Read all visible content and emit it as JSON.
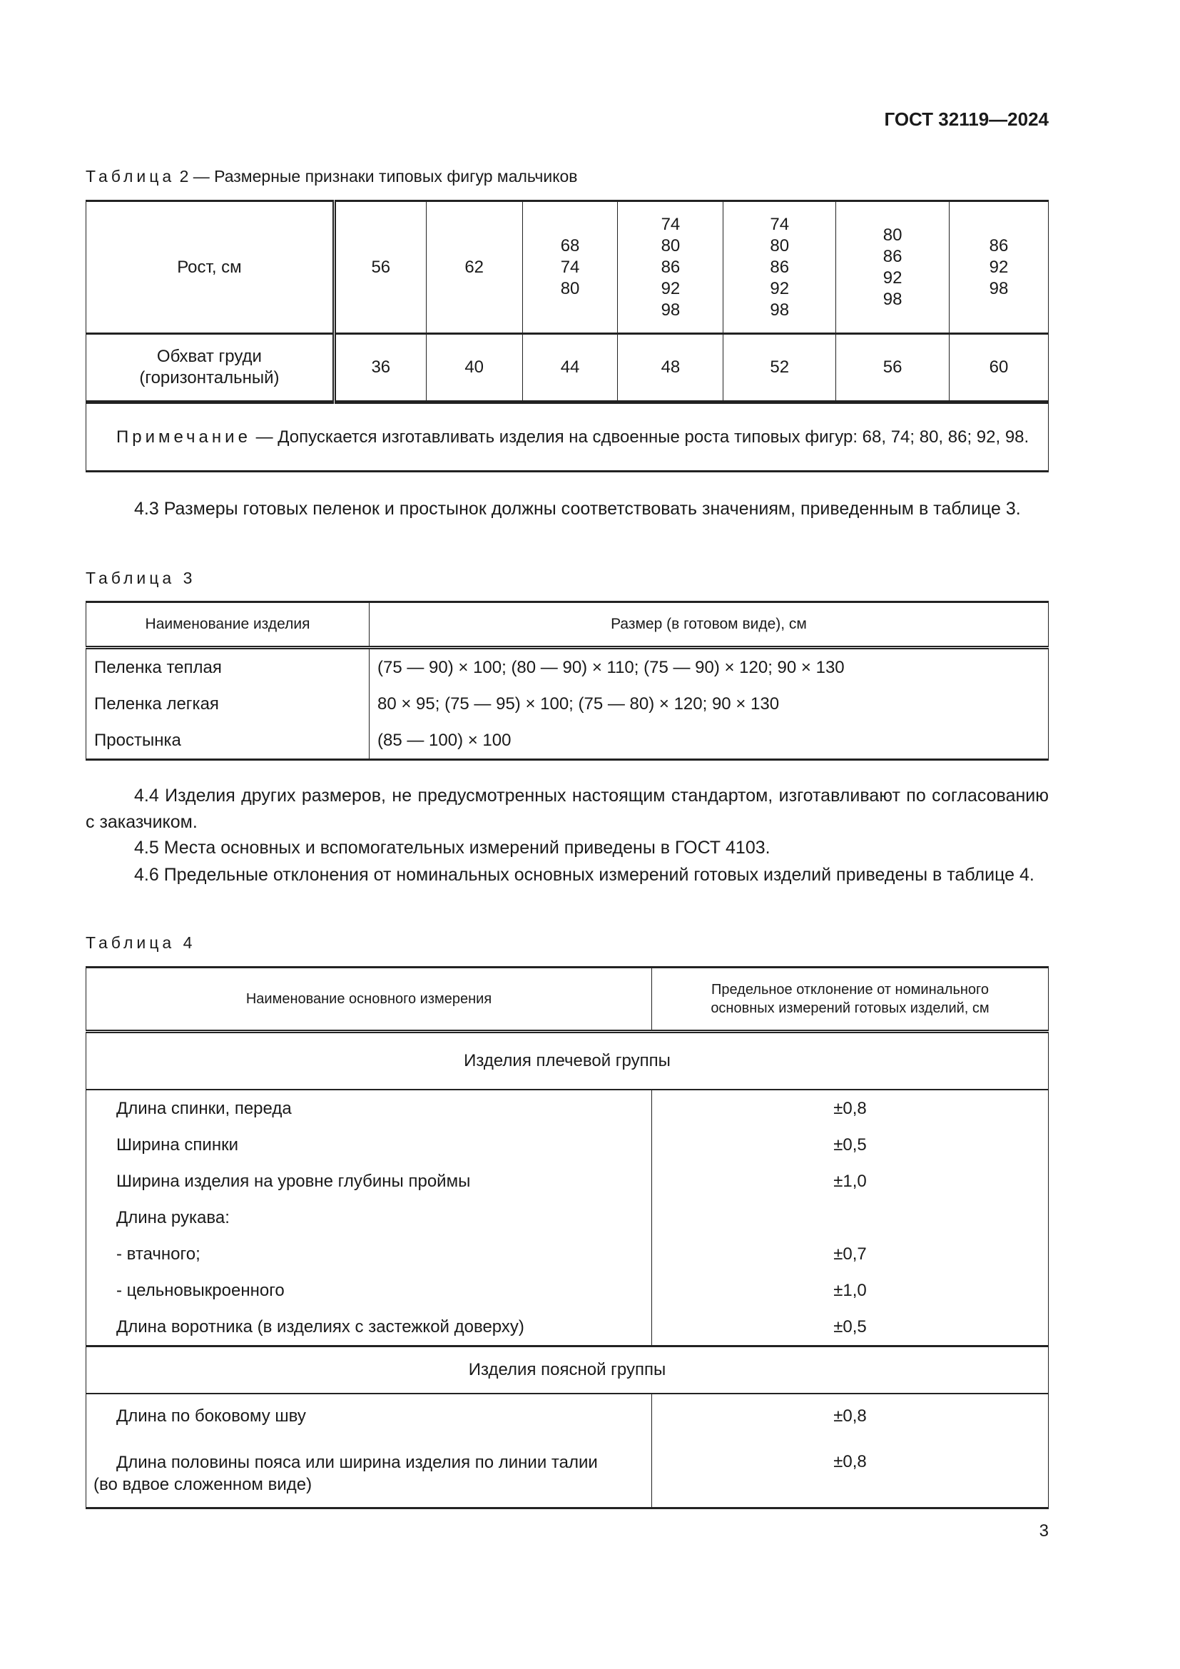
{
  "header": {
    "doc_id": "ГОСТ 32119—2024"
  },
  "table2": {
    "caption_word": "Таблица",
    "caption_rest": "2 — Размерные признаки типовых фигур мальчиков",
    "row1_label": "Рост, см",
    "row1_values": [
      [
        "56"
      ],
      [
        "62"
      ],
      [
        "68",
        "74",
        "80"
      ],
      [
        "74",
        "80",
        "86",
        "92",
        "98"
      ],
      [
        "74",
        "80",
        "86",
        "92",
        "98"
      ],
      [
        "80",
        "86",
        "92",
        "98"
      ],
      [
        "86",
        "92",
        "98"
      ]
    ],
    "row2_label_line1": "Обхват груди",
    "row2_label_line2": "(горизонтальный)",
    "row2_values": [
      "36",
      "40",
      "44",
      "48",
      "52",
      "56",
      "60"
    ],
    "note_word": "Примечание",
    "note_text": " — Допускается изготавливать изделия на сдвоенные роста типовых фигур: 68, 74; 80, 86; 92, 98."
  },
  "para_4_3": "4.3 Размеры готовых пеленок и простынок должны соответствовать значениям, приведенным в таблице 3.",
  "table3": {
    "caption": "Таблица 3",
    "headers": [
      "Наименование изделия",
      "Размер (в готовом виде), см"
    ],
    "rows": [
      [
        "Пеленка теплая",
        "(75 — 90) × 100; (80 — 90) × 110; (75 — 90) × 120; 90 × 130"
      ],
      [
        "Пеленка легкая",
        "80 × 95; (75 — 95) × 100; (75 — 80) × 120; 90 × 130"
      ],
      [
        "Простынка",
        "(85 — 100) × 100"
      ]
    ]
  },
  "para_4_4": "4.4 Изделия других размеров, не предусмотренных настоящим стандартом, изготавливают по согласованию с заказчиком.",
  "para_4_5": "4.5 Места основных и вспомогательных измерений приведены в ГОСТ 4103.",
  "para_4_6": "4.6 Предельные отклонения от номинальных основных измерений готовых изделий приведены в таблице 4.",
  "table4": {
    "caption": "Таблица 4",
    "header_left": "Наименование основного измерения",
    "header_right_line1": "Предельное отклонение от номинального",
    "header_right_line2": "основных измерений готовых изделий, см",
    "group1": "Изделия плечевой группы",
    "group1_rows": [
      [
        "Длина спинки, переда",
        "±0,8"
      ],
      [
        "Ширина спинки",
        "±0,5"
      ],
      [
        "Ширина изделия на уровне глубины проймы",
        "±1,0"
      ],
      [
        "Длина рукава:",
        ""
      ],
      [
        "-  втачного;",
        "±0,7"
      ],
      [
        "-  цельновыкроенного",
        "±1,0"
      ],
      [
        "Длина воротника (в изделиях с застежкой доверху)",
        "±0,5"
      ]
    ],
    "group2": "Изделия поясной группы",
    "group2_row1": [
      "Длина по боковому шву",
      "±0,8"
    ],
    "group2_row2_line1": "Длина половины пояса или ширина изделия по линии талии",
    "group2_row2_line2": "(во вдвое сложенном виде)",
    "group2_row2_value": "±0,8"
  },
  "page_number": "3"
}
